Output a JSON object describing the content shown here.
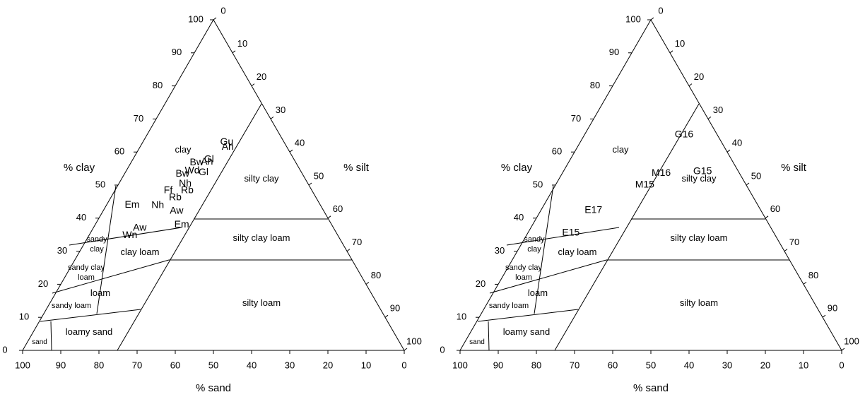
{
  "chart_data": [
    {
      "type": "ternary",
      "a_label": "% clay",
      "b_label": "% silt",
      "c_label": "% sand",
      "lim": [
        0,
        100
      ],
      "clay_ticks": [
        0,
        10,
        20,
        30,
        40,
        50,
        60,
        70,
        80,
        90,
        100
      ],
      "silt_ticks": [
        0,
        10,
        20,
        30,
        40,
        50,
        60,
        70,
        80,
        90,
        100
      ],
      "sand_ticks": [
        0,
        10,
        20,
        30,
        40,
        50,
        60,
        70,
        80,
        90,
        100
      ],
      "regions": [
        [
          "clay"
        ],
        [
          "silty clay"
        ],
        [
          "silty clay loam"
        ],
        [
          "clay loam"
        ],
        [
          "sandy",
          "clay"
        ],
        [
          "sandy clay",
          "loam"
        ],
        [
          "loam"
        ],
        [
          "sandy loam"
        ],
        [
          "silty loam"
        ],
        [
          "loamy sand"
        ],
        [
          "sand"
        ]
      ],
      "points": [
        {
          "label": "Gu",
          "color": "#1f1fd6",
          "clay": 63,
          "silt": 22
        },
        {
          "label": "Ah",
          "color": "#e8191a",
          "clay": 61.5,
          "silt": 23
        },
        {
          "label": "Gl",
          "color": "#1f1fd6",
          "clay": 57.7,
          "silt": 20
        },
        {
          "label": "Ah",
          "color": "#1f1fd6",
          "clay": 57,
          "silt": 19.8
        },
        {
          "label": "Bw",
          "color": "#e8191a",
          "clay": 56.8,
          "silt": 17.2
        },
        {
          "label": "Wd",
          "color": "#e8191a",
          "clay": 54.3,
          "silt": 17.3
        },
        {
          "label": "Gl",
          "color": "#e8191a",
          "clay": 53.8,
          "silt": 20.5
        },
        {
          "label": "Bw",
          "color": "#1f1fd6",
          "clay": 53.4,
          "silt": 15.2
        },
        {
          "label": "Nh",
          "color": "#e8191a",
          "clay": 50.4,
          "silt": 17.4
        },
        {
          "label": "Rb",
          "color": "#e8191a",
          "clay": 48.3,
          "silt": 19
        },
        {
          "label": "Ff",
          "color": "#1f1fd6",
          "clay": 48.3,
          "silt": 14
        },
        {
          "label": "Rb",
          "color": "#1f1fd6",
          "clay": 46.2,
          "silt": 16.9
        },
        {
          "label": "Em",
          "color": "#1f1fd6",
          "clay": 44,
          "silt": 6.7
        },
        {
          "label": "Nh",
          "color": "#1f1fd6",
          "clay": 43.8,
          "silt": 13.5
        },
        {
          "label": "Aw",
          "color": "#e8191a",
          "clay": 42.1,
          "silt": 19.3
        },
        {
          "label": "Em",
          "color": "#e8191a",
          "clay": 38,
          "silt": 22.7
        },
        {
          "label": "Aw",
          "color": "#1f1fd6",
          "clay": 37,
          "silt": 12.2
        },
        {
          "label": "Wn",
          "color": "#1f1fd6",
          "clay": 34.8,
          "silt": 10.7
        }
      ]
    },
    {
      "type": "ternary",
      "a_label": "% clay",
      "b_label": "% silt",
      "c_label": "% sand",
      "lim": [
        0,
        100
      ],
      "clay_ticks": [
        0,
        10,
        20,
        30,
        40,
        50,
        60,
        70,
        80,
        90,
        100
      ],
      "silt_ticks": [
        0,
        10,
        20,
        30,
        40,
        50,
        60,
        70,
        80,
        90,
        100
      ],
      "sand_ticks": [
        0,
        10,
        20,
        30,
        40,
        50,
        60,
        70,
        80,
        90,
        100
      ],
      "regions": [
        [
          "clay"
        ],
        [
          "silty clay"
        ],
        [
          "silty clay loam"
        ],
        [
          "clay loam"
        ],
        [
          "sandy",
          "clay"
        ],
        [
          "sandy clay",
          "loam"
        ],
        [
          "loam"
        ],
        [
          "sandy loam"
        ],
        [
          "silty loam"
        ],
        [
          "loamy sand"
        ],
        [
          "sand"
        ]
      ],
      "points": [
        {
          "label": "G16",
          "color": "#e8191a",
          "clay": 65.2,
          "silt": 26.1
        },
        {
          "label": "M16",
          "color": "#1f1fd6",
          "clay": 53.6,
          "silt": 25.9
        },
        {
          "label": "G15",
          "color": "#1f1fd6",
          "clay": 54.1,
          "silt": 36.5
        },
        {
          "label": "M15",
          "color": "#e8191a",
          "clay": 50,
          "silt": 23.4
        },
        {
          "label": "E17",
          "color": "#1f1fd6",
          "clay": 42.3,
          "silt": 13.8
        },
        {
          "label": "E15",
          "color": "#1f1fd6",
          "clay": 35.5,
          "silt": 11.3
        }
      ]
    }
  ]
}
